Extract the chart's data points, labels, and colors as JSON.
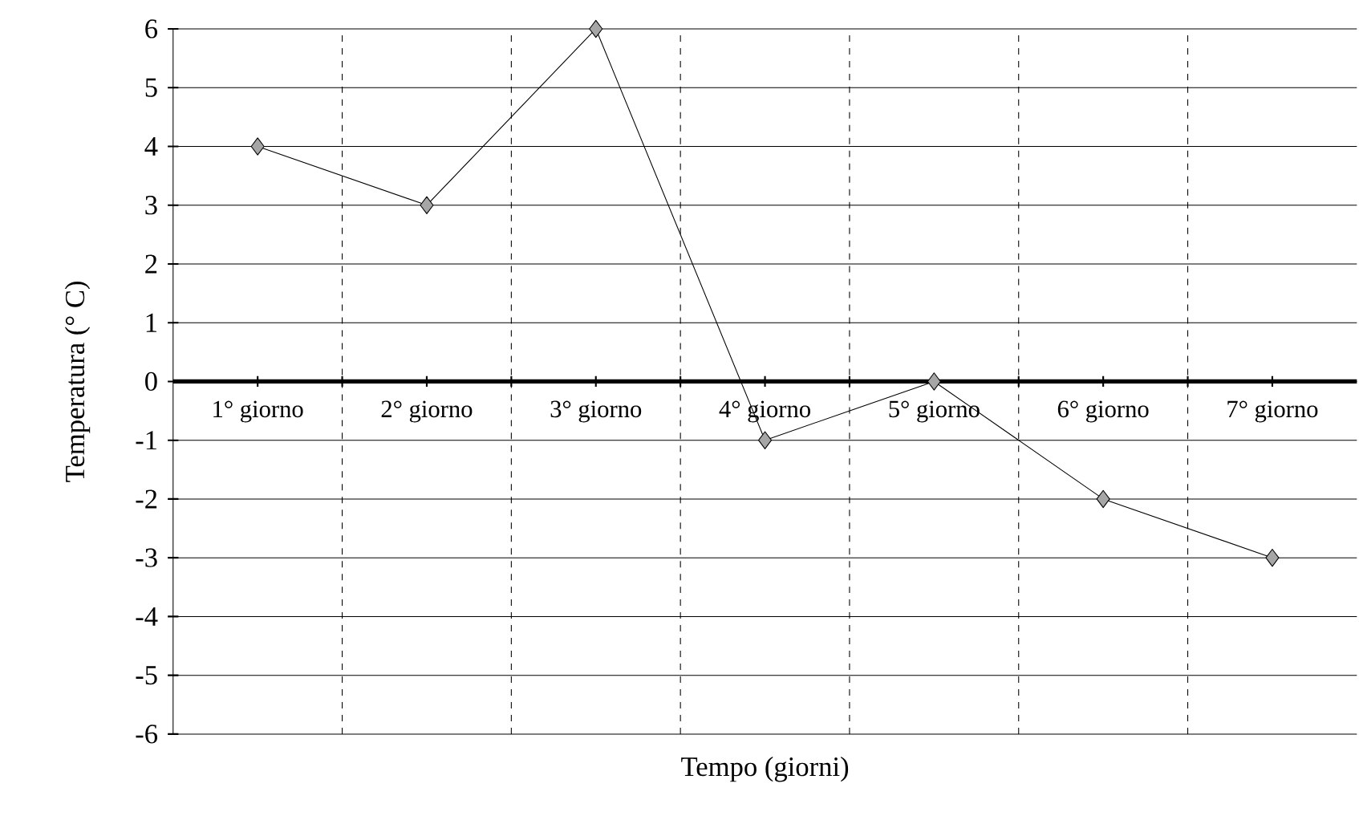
{
  "chart_data": {
    "type": "line",
    "xlabel": "Tempo (giorni)",
    "ylabel": "Temperatura (° C)",
    "categories": [
      "1° giorno",
      "2° giorno",
      "3° giorno",
      "4° giorno",
      "5° giorno",
      "6° giorno",
      "7° giorno"
    ],
    "values": [
      4,
      3,
      6,
      -1,
      0,
      -2,
      -3
    ],
    "color": "#000000",
    "ylim": [
      -6,
      6
    ],
    "yticks": [
      -6,
      -5,
      -4,
      -3,
      -2,
      -1,
      0,
      1,
      2,
      3,
      4,
      5,
      6
    ],
    "grid": true,
    "marker": "diamond",
    "line_style": "solid"
  }
}
